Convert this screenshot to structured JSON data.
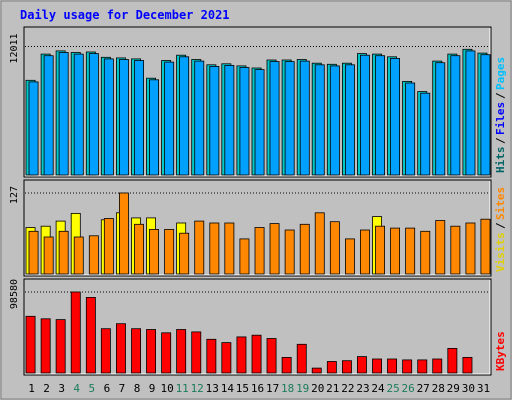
{
  "chart_data": {
    "type": "bar",
    "title": "Daily usage for December 2021",
    "categories": [
      "1",
      "2",
      "3",
      "4",
      "5",
      "6",
      "7",
      "8",
      "9",
      "10",
      "11",
      "12",
      "13",
      "14",
      "15",
      "16",
      "17",
      "18",
      "19",
      "20",
      "21",
      "22",
      "23",
      "24",
      "25",
      "26",
      "27",
      "28",
      "29",
      "30",
      "31"
    ],
    "weekend_days": [
      "4",
      "5",
      "11",
      "12",
      "18",
      "19",
      "25",
      "26"
    ],
    "colors": {
      "title": "#0000ff",
      "weekday_label": "#000000",
      "weekend_label": "#1c7c5c",
      "hits": "#00c8c8",
      "files": "#00a0ff",
      "pages": "#00e0ff",
      "visits": "#ffff00",
      "sites": "#ff8800",
      "kbytes": "#ff0000",
      "legend_hits": "#006464",
      "legend_files": "#0000ff",
      "legend_pages": "#00c0ff",
      "legend_visits": "#e0d000",
      "legend_sites": "#ff8800",
      "legend_kbytes": "#ff0000",
      "background": "#c0c0c0"
    },
    "panels": [
      {
        "id": "hits-files-pages",
        "ymax_label": "12011",
        "legend": [
          {
            "name": "Hits",
            "color_key": "legend_hits"
          },
          {
            "name": "Files",
            "color_key": "legend_files"
          },
          {
            "name": "Pages",
            "color_key": "legend_pages"
          }
        ],
        "series": [
          {
            "name": "Hits",
            "color_key": "hits",
            "values": [
              8850,
              11300,
              11600,
              11450,
              11500,
              11000,
              10950,
              10850,
              9050,
              10700,
              11200,
              10800,
              10300,
              10400,
              10200,
              10000,
              10750,
              10750,
              10800,
              10450,
              10350,
              10450,
              11350,
              11300,
              11050,
              8750,
              7800,
              10650,
              11300,
              11750,
              11400
            ]
          },
          {
            "name": "Files",
            "color_key": "files",
            "values": [
              8700,
              11150,
              11450,
              11300,
              11350,
              10850,
              10800,
              10700,
              8900,
              10550,
              11050,
              10650,
              10150,
              10250,
              10050,
              9850,
              10600,
              10600,
              10650,
              10300,
              10200,
              10300,
              11200,
              11150,
              10900,
              8600,
              7650,
              10500,
              11150,
              11600,
              11250
            ]
          },
          {
            "name": "Pages",
            "color_key": "pages",
            "values": [
              null,
              null,
              null,
              null,
              null,
              null,
              null,
              null,
              null,
              null,
              null,
              null,
              null,
              null,
              null,
              null,
              null,
              null,
              null,
              null,
              null,
              null,
              null,
              null,
              null,
              null,
              null,
              null,
              null,
              null,
              null
            ]
          }
        ]
      },
      {
        "id": "visits-sites",
        "ymax_label": "127",
        "legend": [
          {
            "name": "Visits",
            "color_key": "legend_visits"
          },
          {
            "name": "Sites",
            "color_key": "legend_sites"
          }
        ],
        "series": [
          {
            "name": "Visits",
            "color_key": "visits",
            "values": [
              73,
              75,
              83,
              95,
              null,
              85,
              96,
              88,
              88,
              null,
              80,
              null,
              null,
              null,
              null,
              null,
              null,
              null,
              null,
              null,
              null,
              null,
              null,
              90,
              null,
              null,
              null,
              null,
              null,
              null,
              null
            ]
          },
          {
            "name": "Sites",
            "color_key": "sites",
            "values": [
              67,
              58,
              67,
              58,
              60,
              87,
              127,
              78,
              70,
              70,
              64,
              83,
              80,
              80,
              55,
              73,
              79,
              69,
              78,
              96,
              82,
              55,
              69,
              75,
              72,
              72,
              67,
              84,
              75,
              80,
              86
            ]
          }
        ]
      },
      {
        "id": "kbytes",
        "ymax_label": "98580",
        "legend": [
          {
            "name": "KBytes",
            "color_key": "legend_kbytes"
          }
        ],
        "series": [
          {
            "name": "KBytes",
            "color_key": "kbytes",
            "values": [
              69000,
              66000,
              65000,
              98580,
              92000,
              54000,
              60000,
              54000,
              53000,
              49000,
              53000,
              50000,
              41000,
              37000,
              44000,
              46000,
              42000,
              19000,
              35000,
              6000,
              14000,
              15000,
              20000,
              17000,
              17000,
              16000,
              16000,
              17000,
              30000,
              19000,
              0
            ]
          }
        ]
      }
    ]
  }
}
